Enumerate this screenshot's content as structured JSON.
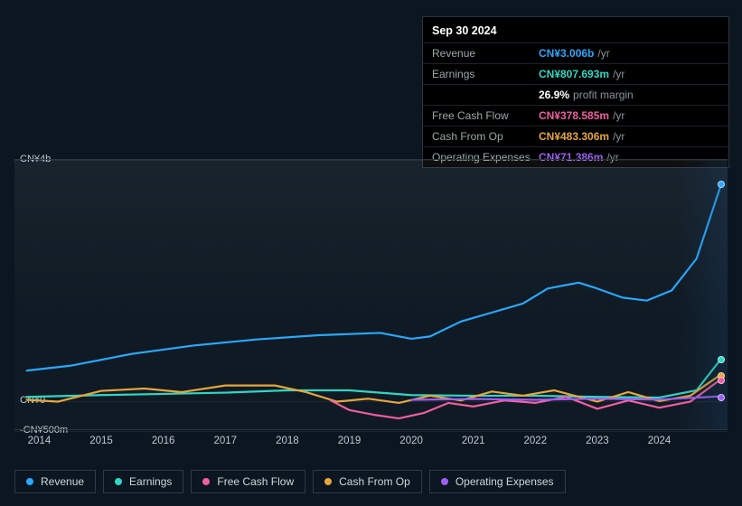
{
  "colors": {
    "revenue": "#2aa8ff",
    "earnings": "#30d6c4",
    "free_cash_flow": "#ef5fa0",
    "cash_from_op": "#e6a63c",
    "operating_expenses": "#9d5ff2",
    "background": "#0b1620",
    "grid": "#2a3640",
    "text": "#cfd8dc"
  },
  "tooltip": {
    "date": "Sep 30 2024",
    "rows": [
      {
        "label": "Revenue",
        "value": "CN¥3.006b",
        "unit": "/yr",
        "color_key": "revenue"
      },
      {
        "label": "Earnings",
        "value": "CN¥807.693m",
        "unit": "/yr",
        "color_key": "earnings"
      },
      {
        "label": "",
        "value": "26.9%",
        "sub": "profit margin",
        "color_key": ""
      },
      {
        "label": "Free Cash Flow",
        "value": "CN¥378.585m",
        "unit": "/yr",
        "color_key": "free_cash_flow"
      },
      {
        "label": "Cash From Op",
        "value": "CN¥483.306m",
        "unit": "/yr",
        "color_key": "cash_from_op"
      },
      {
        "label": "Operating Expenses",
        "value": "CN¥71.386m",
        "unit": "/yr",
        "color_key": "operating_expenses"
      }
    ]
  },
  "chart": {
    "type": "line",
    "x_years": [
      2014,
      2015,
      2016,
      2017,
      2018,
      2019,
      2020,
      2021,
      2022,
      2023,
      2024
    ],
    "x_domain": [
      2013.6,
      2025.1
    ],
    "future_start_year": 2024.3,
    "y_axis": {
      "ticks": [
        {
          "value": 4000,
          "label": "CN¥4b"
        },
        {
          "value": 0,
          "label": "CN¥0"
        },
        {
          "value": -500,
          "label": "-CN¥500m"
        }
      ],
      "ylim": [
        -500,
        4000
      ]
    },
    "gridlines_y": [
      4000,
      0,
      -500
    ],
    "line_width": 2.2,
    "series": [
      {
        "key": "revenue",
        "label": "Revenue",
        "points": [
          [
            2013.8,
            480
          ],
          [
            2014.5,
            560
          ],
          [
            2015.5,
            760
          ],
          [
            2016.5,
            900
          ],
          [
            2017.5,
            1000
          ],
          [
            2018.5,
            1070
          ],
          [
            2019.0,
            1090
          ],
          [
            2019.5,
            1110
          ],
          [
            2020.0,
            1010
          ],
          [
            2020.3,
            1050
          ],
          [
            2020.8,
            1300
          ],
          [
            2021.3,
            1450
          ],
          [
            2021.8,
            1600
          ],
          [
            2022.2,
            1850
          ],
          [
            2022.7,
            1950
          ],
          [
            2023.0,
            1850
          ],
          [
            2023.4,
            1700
          ],
          [
            2023.8,
            1650
          ],
          [
            2024.2,
            1820
          ],
          [
            2024.6,
            2350
          ],
          [
            2025.0,
            3600
          ]
        ]
      },
      {
        "key": "earnings",
        "label": "Earnings",
        "points": [
          [
            2013.8,
            40
          ],
          [
            2015.0,
            70
          ],
          [
            2016.0,
            90
          ],
          [
            2017.0,
            110
          ],
          [
            2018.0,
            150
          ],
          [
            2019.0,
            150
          ],
          [
            2020.0,
            70
          ],
          [
            2021.0,
            60
          ],
          [
            2022.0,
            60
          ],
          [
            2023.0,
            40
          ],
          [
            2024.0,
            30
          ],
          [
            2024.6,
            150
          ],
          [
            2025.0,
            680
          ]
        ]
      },
      {
        "key": "cash_from_op",
        "label": "Cash From Op",
        "points": [
          [
            2013.8,
            -10
          ],
          [
            2014.3,
            -40
          ],
          [
            2015.0,
            140
          ],
          [
            2015.7,
            180
          ],
          [
            2016.3,
            120
          ],
          [
            2017.0,
            230
          ],
          [
            2017.8,
            230
          ],
          [
            2018.3,
            120
          ],
          [
            2018.8,
            -40
          ],
          [
            2019.3,
            10
          ],
          [
            2019.8,
            -60
          ],
          [
            2020.3,
            60
          ],
          [
            2020.8,
            -20
          ],
          [
            2021.3,
            130
          ],
          [
            2021.8,
            60
          ],
          [
            2022.3,
            150
          ],
          [
            2023.0,
            -40
          ],
          [
            2023.5,
            120
          ],
          [
            2024.0,
            -30
          ],
          [
            2024.5,
            60
          ],
          [
            2025.0,
            420
          ]
        ]
      },
      {
        "key": "free_cash_flow",
        "label": "Free Cash Flow",
        "points": [
          [
            2018.7,
            -20
          ],
          [
            2019.0,
            -180
          ],
          [
            2019.4,
            -260
          ],
          [
            2019.8,
            -320
          ],
          [
            2020.2,
            -230
          ],
          [
            2020.6,
            -60
          ],
          [
            2021.0,
            -120
          ],
          [
            2021.5,
            -20
          ],
          [
            2022.0,
            -60
          ],
          [
            2022.5,
            40
          ],
          [
            2023.0,
            -160
          ],
          [
            2023.5,
            -20
          ],
          [
            2024.0,
            -140
          ],
          [
            2024.5,
            -40
          ],
          [
            2025.0,
            340
          ]
        ]
      },
      {
        "key": "operating_expenses",
        "label": "Operating Expenses",
        "points": [
          [
            2020.0,
            -10
          ],
          [
            2021.0,
            5
          ],
          [
            2022.0,
            -10
          ],
          [
            2023.0,
            10
          ],
          [
            2024.0,
            -5
          ],
          [
            2025.0,
            50
          ]
        ]
      }
    ]
  },
  "legend": [
    {
      "key": "revenue",
      "label": "Revenue"
    },
    {
      "key": "earnings",
      "label": "Earnings"
    },
    {
      "key": "free_cash_flow",
      "label": "Free Cash Flow"
    },
    {
      "key": "cash_from_op",
      "label": "Cash From Op"
    },
    {
      "key": "operating_expenses",
      "label": "Operating Expenses"
    }
  ]
}
